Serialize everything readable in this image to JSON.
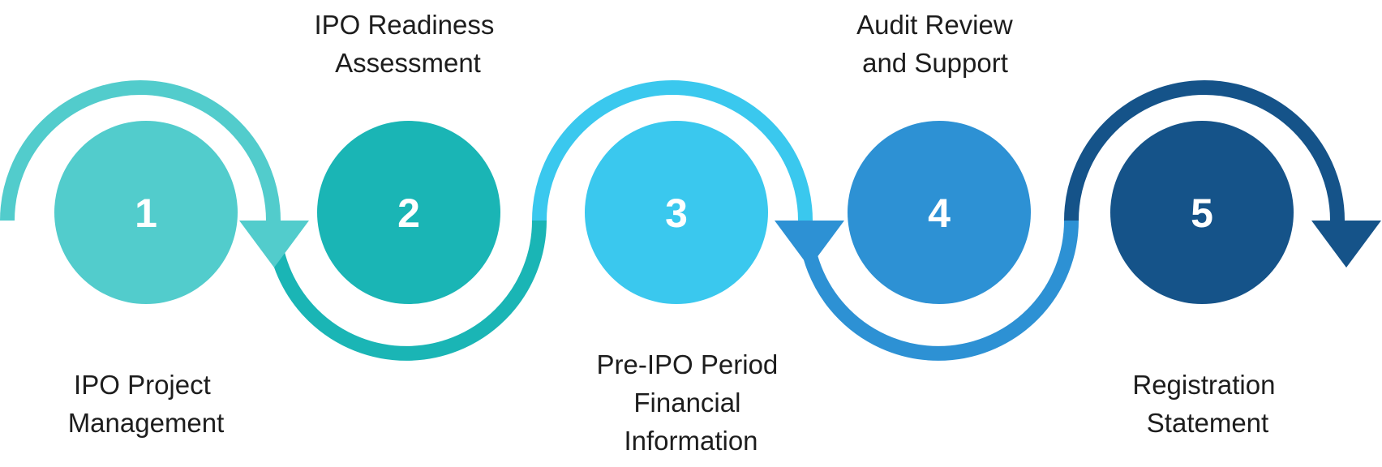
{
  "colors": {
    "teal_light": "#52cccc",
    "teal": "#1ab5b5",
    "sky": "#3ac8ee",
    "blue": "#2d91d4",
    "navy": "#155389",
    "label_text": "#1d1d1d",
    "number_text": "#ffffff"
  },
  "steps": [
    {
      "number": "1",
      "label_lines": [
        "IPO Project",
        "Management"
      ]
    },
    {
      "number": "2",
      "label_lines": [
        "IPO Readiness",
        "Assessment"
      ]
    },
    {
      "number": "3",
      "label_lines": [
        "Pre-IPO Period",
        "Financial",
        "Information"
      ]
    },
    {
      "number": "4",
      "label_lines": [
        "Audit Review",
        "and Support"
      ]
    },
    {
      "number": "5",
      "label_lines": [
        "Registration",
        "Statement"
      ]
    }
  ],
  "connector_icons": [
    "arrowhead-down-icon",
    "arrowhead-down-icon",
    "arrowhead-down-icon",
    "arrowhead-down-icon",
    "arrowhead-down-icon"
  ]
}
